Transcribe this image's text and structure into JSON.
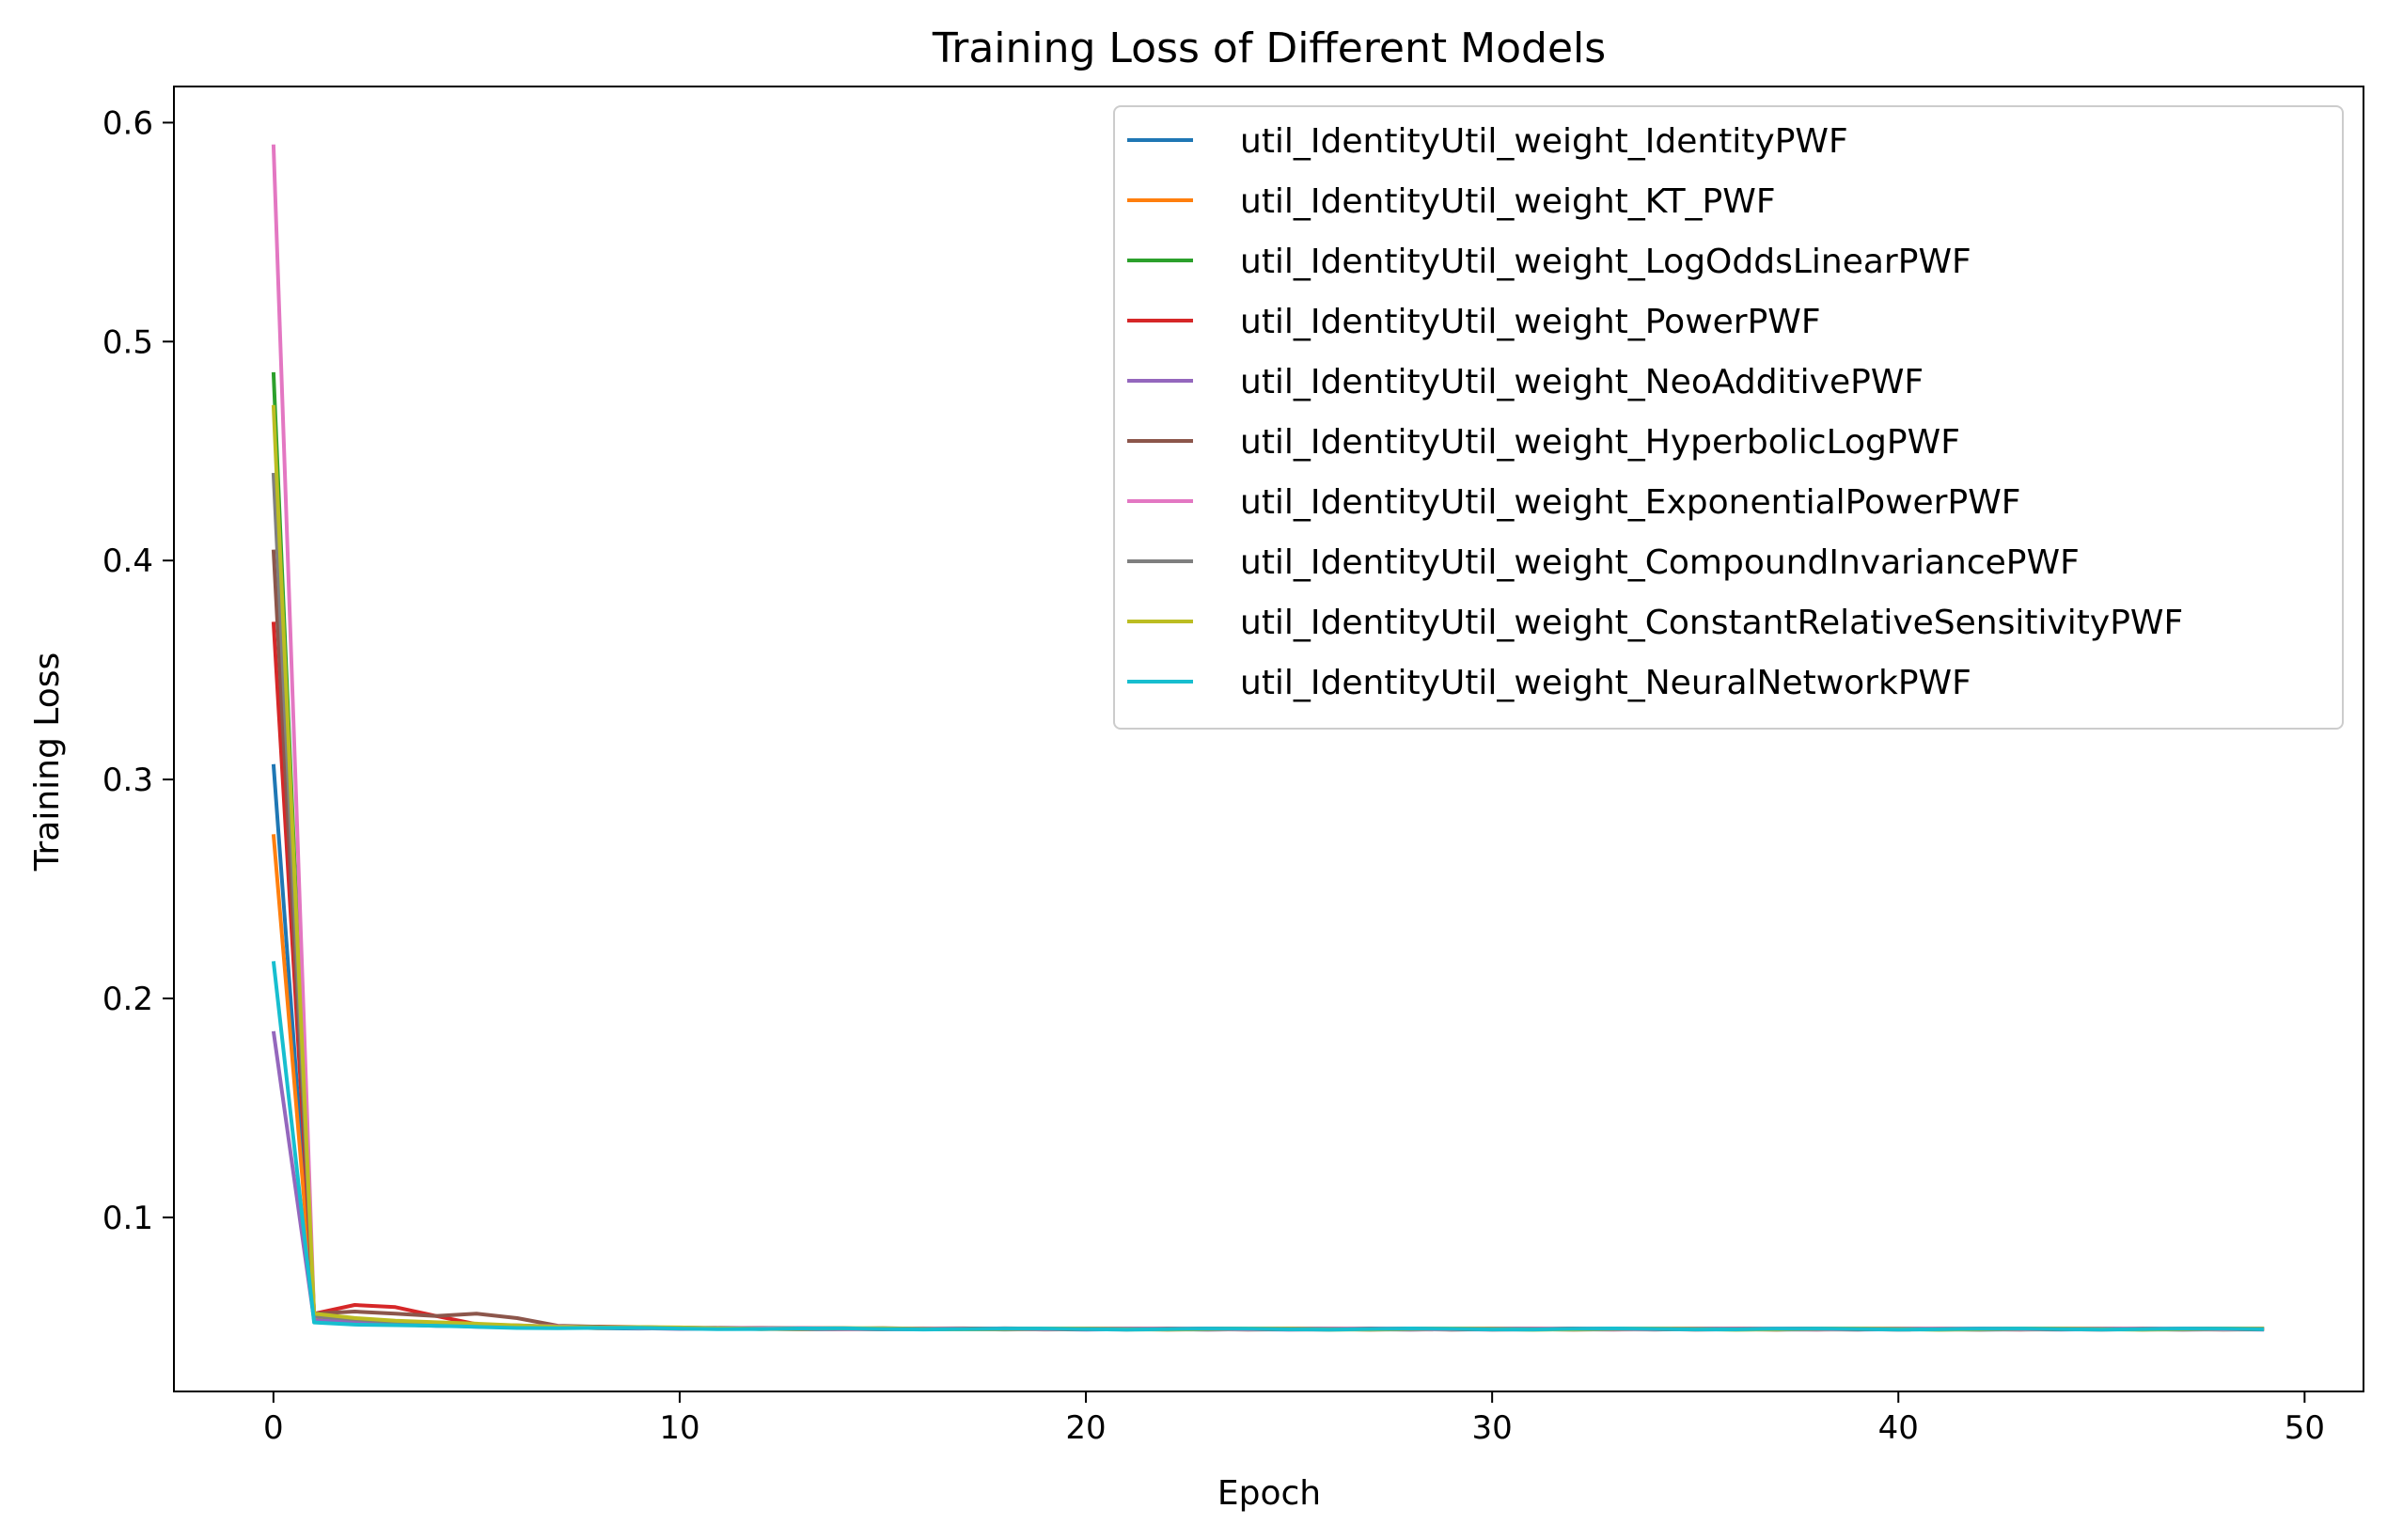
{
  "chart_data": {
    "type": "line",
    "title": "Training Loss of Different Models",
    "xlabel": "Epoch",
    "ylabel": "Training Loss",
    "xlim": [
      -2.45,
      51.45
    ],
    "ylim": [
      0.0205,
      0.6165
    ],
    "xticks": [
      0,
      10,
      20,
      30,
      40,
      50
    ],
    "yticks": [
      0.1,
      0.2,
      0.3,
      0.4,
      0.5,
      0.6
    ],
    "xtick_labels": [
      "0",
      "10",
      "20",
      "30",
      "40",
      "50"
    ],
    "ytick_labels": [
      "0.1",
      "0.2",
      "0.3",
      "0.4",
      "0.5",
      "0.6"
    ],
    "grid": false,
    "legend_position": "upper right",
    "epochs": 50,
    "series": [
      {
        "name": "util_IdentityUtil_weight_IdentityPWF",
        "color": "#1f77b4",
        "start": 0.307,
        "e1": 0.053,
        "plateau": 0.049
      },
      {
        "name": "util_IdentityUtil_weight_KT_PWF",
        "color": "#ff7f0e",
        "start": 0.275,
        "e1": 0.054,
        "plateau": 0.049
      },
      {
        "name": "util_IdentityUtil_weight_LogOddsLinearPWF",
        "color": "#2ca02c",
        "start": 0.486,
        "e1": 0.055,
        "plateau": 0.049
      },
      {
        "name": "util_IdentityUtil_weight_PowerPWF",
        "color": "#d62728",
        "start": 0.372,
        "e1": 0.056,
        "plateau": 0.049,
        "bumps": [
          0.0,
          0.0,
          0.06,
          0.059,
          0.055
        ]
      },
      {
        "name": "util_IdentityUtil_weight_NeoAdditivePWF",
        "color": "#9467bd",
        "start": 0.185,
        "e1": 0.053,
        "plateau": 0.049
      },
      {
        "name": "util_IdentityUtil_weight_HyperbolicLogPWF",
        "color": "#8c564b",
        "start": 0.405,
        "e1": 0.056,
        "plateau": 0.049,
        "bumps": [
          0.0,
          0.0,
          0.057,
          0.056,
          0.055,
          0.056,
          0.054
        ]
      },
      {
        "name": "util_IdentityUtil_weight_ExponentialPowerPWF",
        "color": "#e377c2",
        "start": 0.59,
        "e1": 0.055,
        "plateau": 0.049
      },
      {
        "name": "util_IdentityUtil_weight_CompoundInvariancePWF",
        "color": "#7f7f7f",
        "start": 0.44,
        "e1": 0.055,
        "plateau": 0.049
      },
      {
        "name": "util_IdentityUtil_weight_ConstantRelativeSensitivityPWF",
        "color": "#bcbd22",
        "start": 0.471,
        "e1": 0.056,
        "plateau": 0.049
      },
      {
        "name": "util_IdentityUtil_weight_NeuralNetworkPWF",
        "color": "#17becf",
        "start": 0.217,
        "e1": 0.052,
        "plateau": 0.049
      }
    ]
  }
}
